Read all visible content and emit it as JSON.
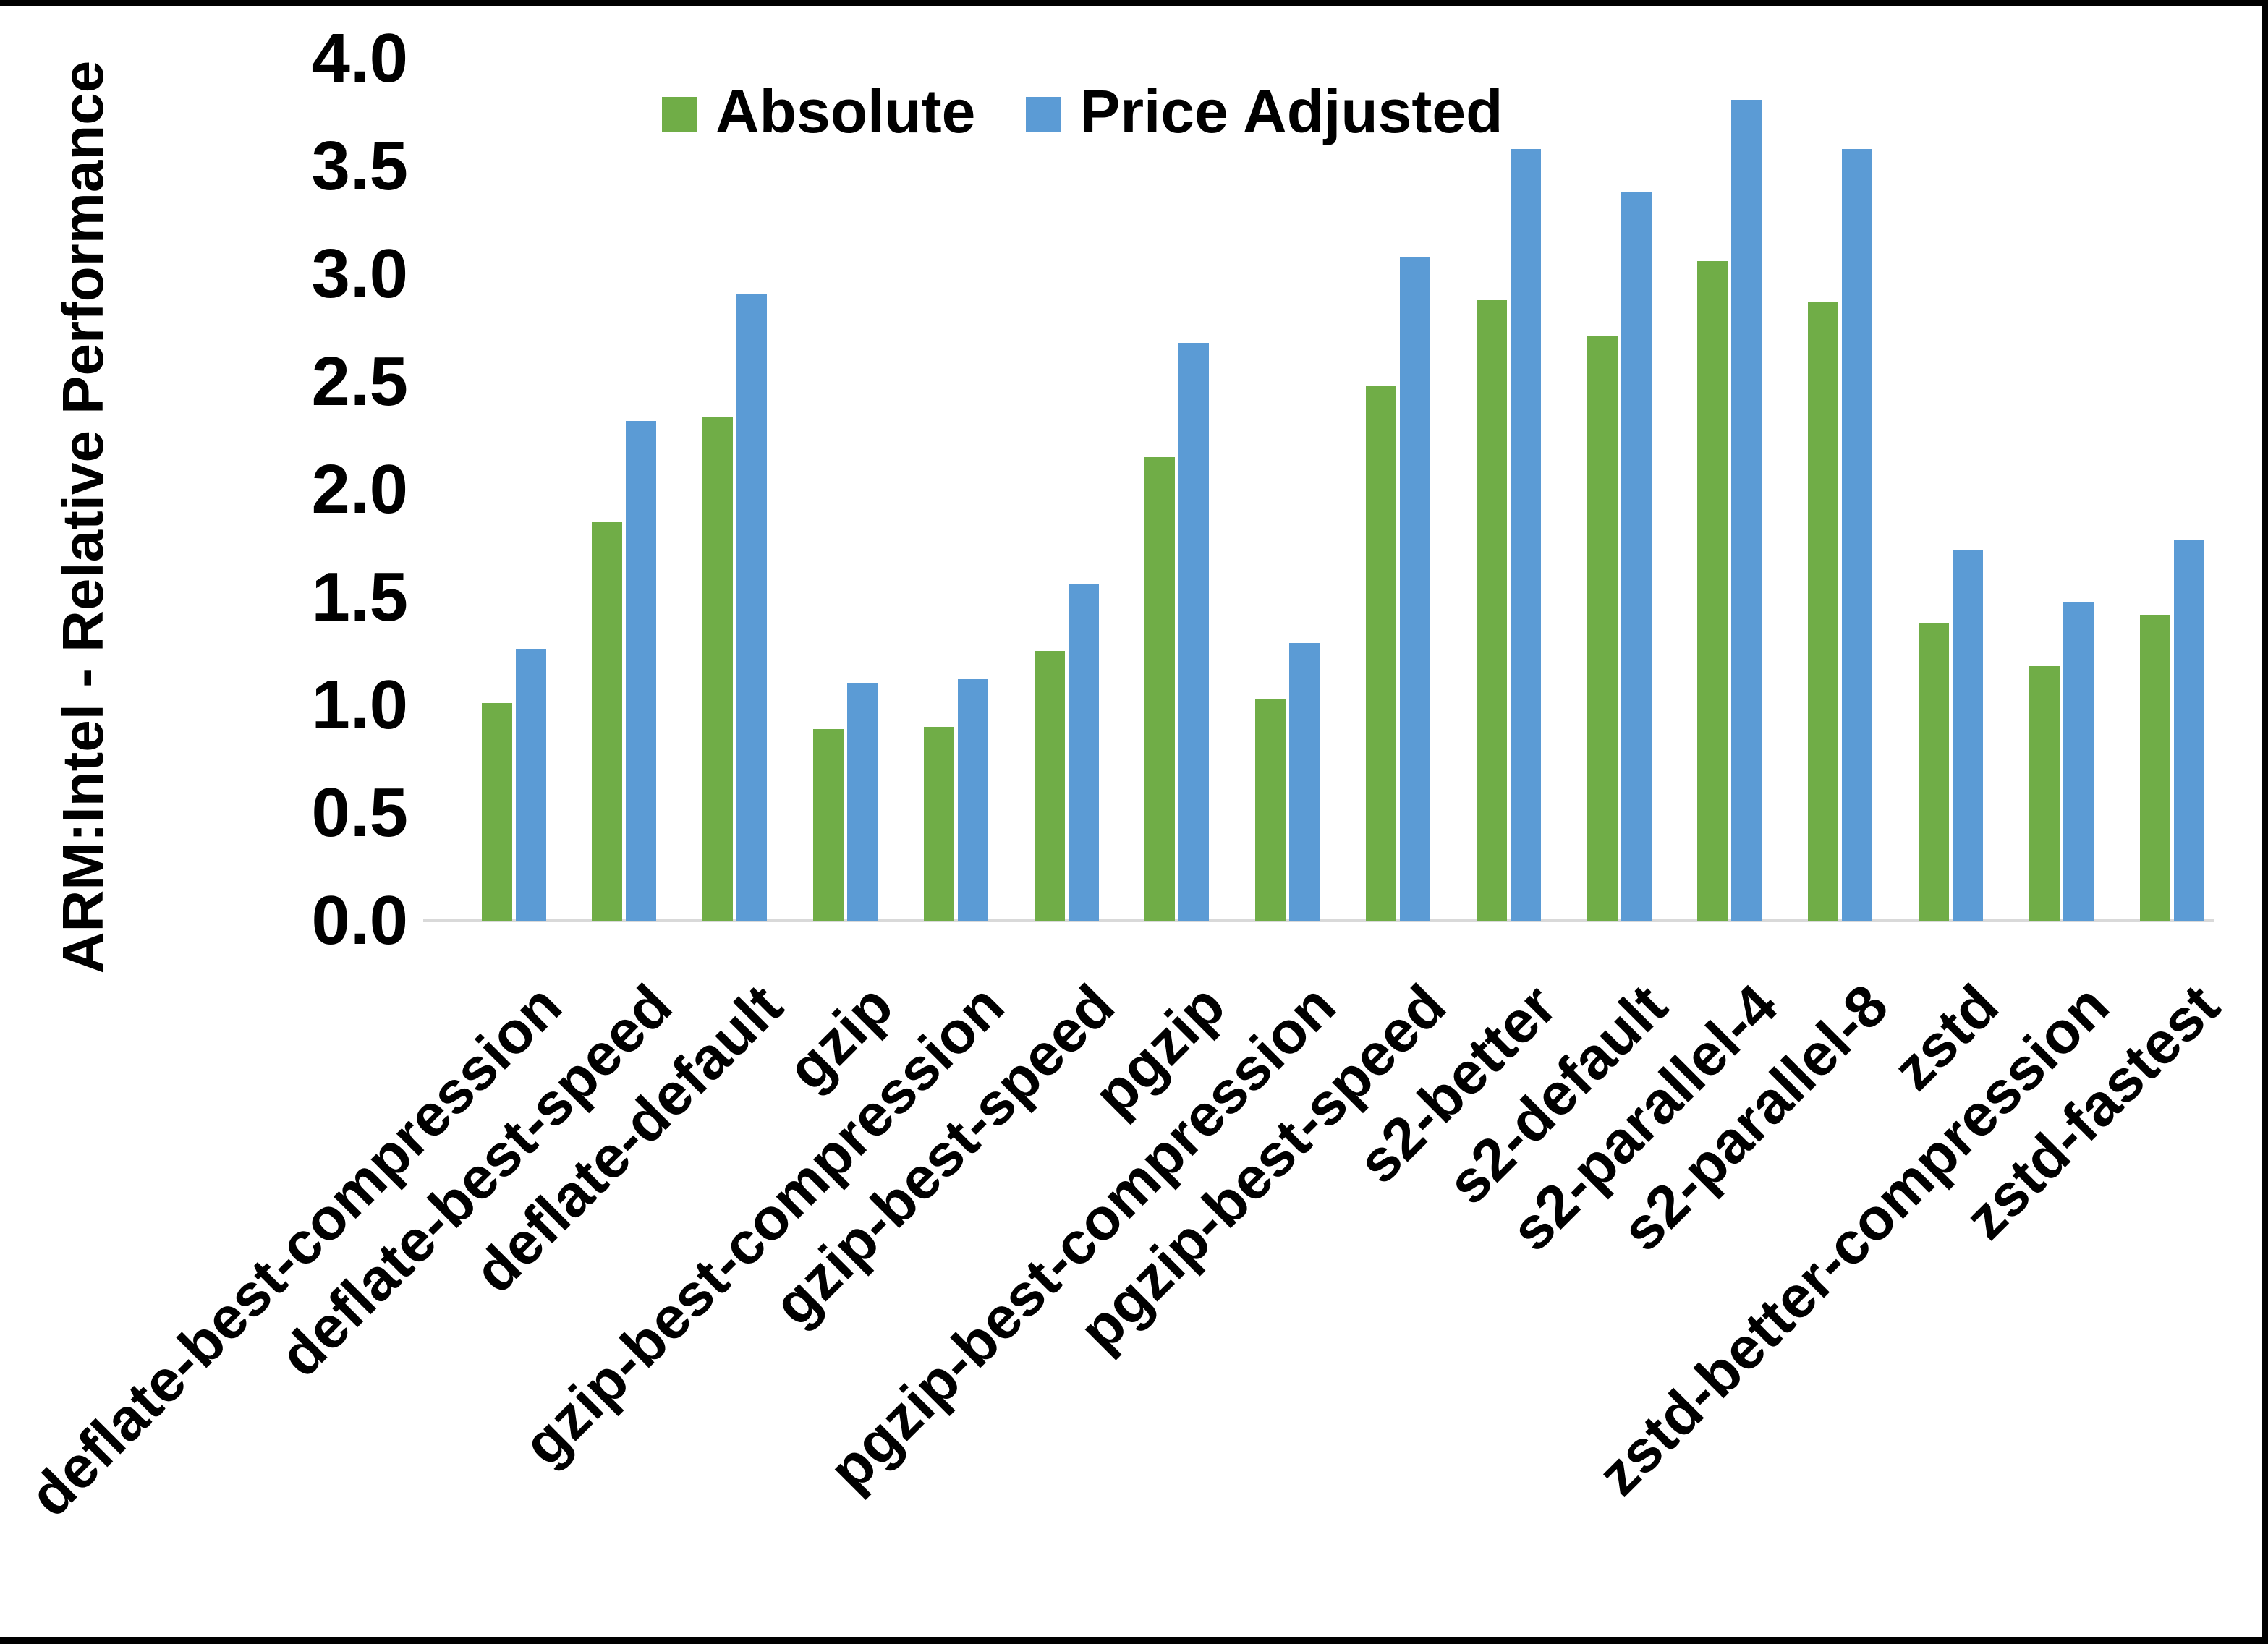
{
  "chart_data": {
    "type": "bar",
    "title": "",
    "xlabel": "",
    "ylabel": "ARM:Intel - Relative Performance",
    "ylim": [
      0.0,
      4.0
    ],
    "ytick_labels": [
      "0.0",
      "0.5",
      "1.0",
      "1.5",
      "2.0",
      "2.5",
      "3.0",
      "3.5",
      "4.0"
    ],
    "grid": false,
    "legend_position": "top-center",
    "categories": [
      "deflate-best-compression",
      "deflate-best-speed",
      "deflate-default",
      "gzip",
      "gzip-best-compression",
      "gzip-best-speed",
      "pgzip",
      "pgzip-best-compression",
      "pgzip-best-speed",
      "s2-better",
      "s2-default",
      "s2-parallel-4",
      "s2-parallel-8",
      "zstd",
      "zstd-better-compression",
      "zstd-fastest"
    ],
    "series": [
      {
        "name": "Absolute",
        "color": "#70AD47",
        "values": [
          1.01,
          1.85,
          2.34,
          0.89,
          0.9,
          1.25,
          2.15,
          1.03,
          2.48,
          2.88,
          2.71,
          3.06,
          2.87,
          1.38,
          1.18,
          1.42
        ]
      },
      {
        "name": "Price Adjusted",
        "color": "#5B9BD5",
        "values": [
          1.26,
          2.32,
          2.91,
          1.1,
          1.12,
          1.56,
          2.68,
          1.29,
          3.08,
          3.58,
          3.38,
          3.81,
          3.58,
          1.72,
          1.48,
          1.77
        ]
      }
    ],
    "axis_line_color": "#d9d9d9",
    "text_color": "#000000"
  }
}
